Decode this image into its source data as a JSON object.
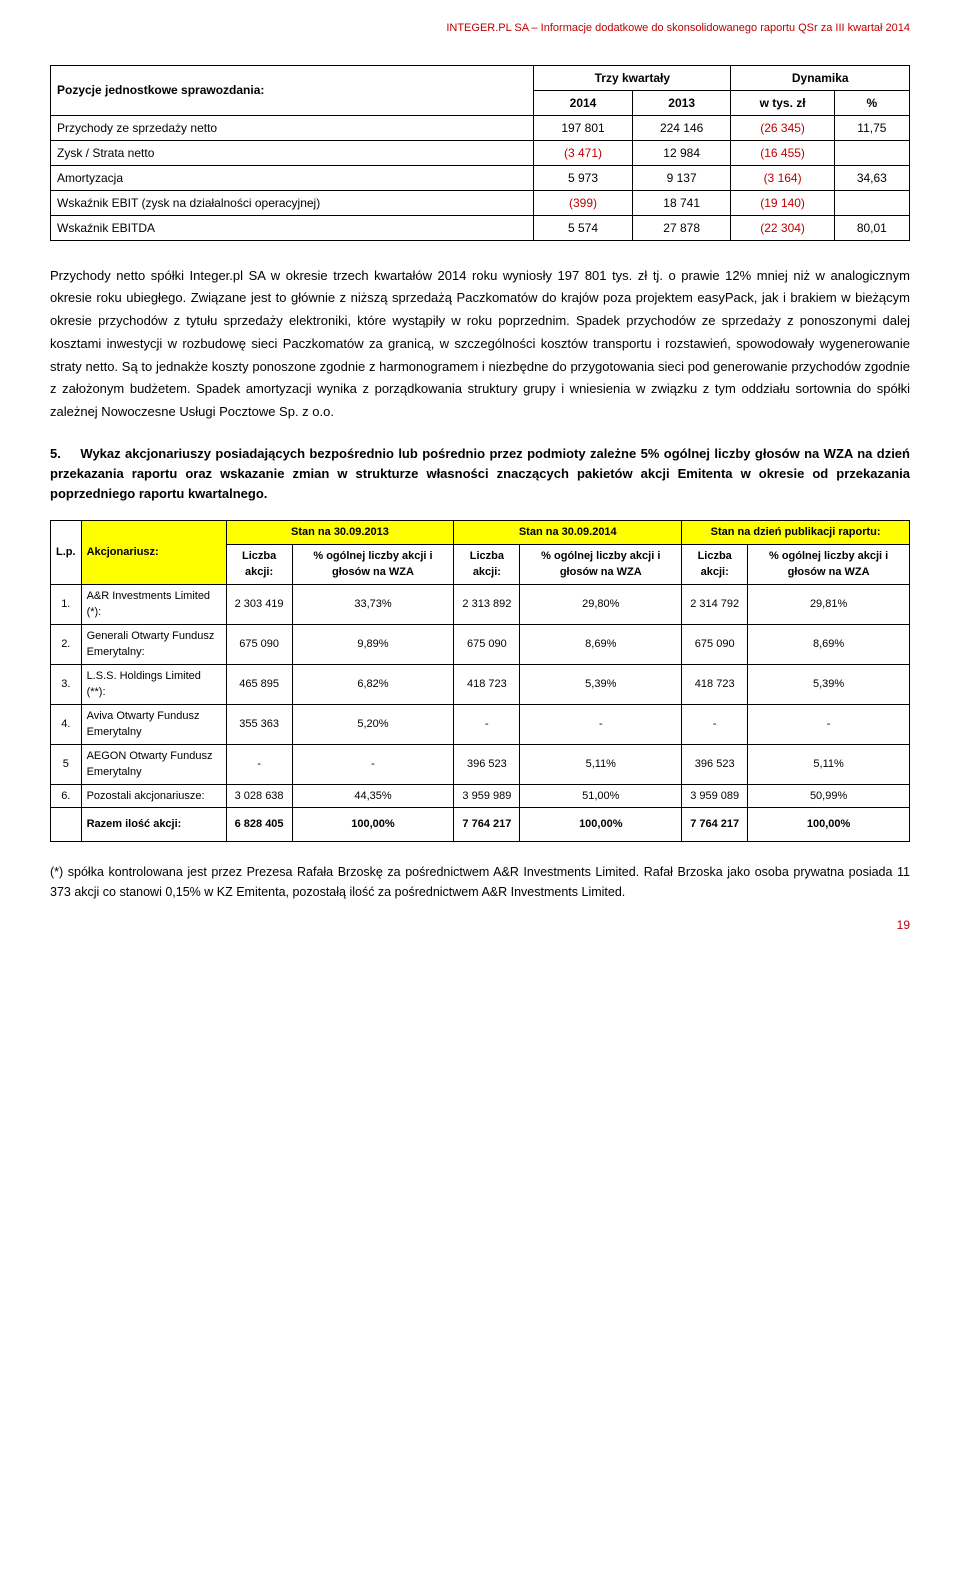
{
  "header": "INTEGER.PL SA – Informacje dodatkowe do skonsolidowanego raportu QSr za III kwartał 2014",
  "t1": {
    "col_headers": {
      "c0": "Pozycje jednostkowe sprawozdania:",
      "c1": "Trzy kwartały",
      "c2": "Dynamika",
      "c1a": "2014",
      "c1b": "2013",
      "c2a": "w tys. zł",
      "c2b": "%"
    },
    "rows": [
      {
        "label": "Przychody ze sprzedaży netto",
        "a": "197 801",
        "b": "224 146",
        "c": "(26 345)",
        "d": "11,75"
      },
      {
        "label": "Zysk / Strata netto",
        "a": "(3 471)",
        "b": "12 984",
        "c": "(16 455)",
        "d": ""
      },
      {
        "label": "Amortyzacja",
        "a": "5 973",
        "b": "9 137",
        "c": "(3 164)",
        "d": "34,63"
      },
      {
        "label": "Wskaźnik EBIT  (zysk na działalności operacyjnej)",
        "a": "(399)",
        "b": "18 741",
        "c": "(19 140)",
        "d": ""
      },
      {
        "label": "Wskaźnik EBITDA",
        "a": "5 574",
        "b": "27 878",
        "c": "(22 304)",
        "d": "80,01"
      }
    ]
  },
  "para1": "Przychody netto spółki Integer.pl SA w okresie trzech kwartałów 2014 roku wyniosły 197 801 tys. zł tj. o prawie 12% mniej niż w analogicznym okresie roku ubiegłego. Związane jest to głównie z niższą sprzedażą Paczkomatów do krajów poza projektem easyPack, jak i brakiem w bieżącym okresie przychodów z tytułu sprzedaży elektroniki, które wystąpiły w roku poprzednim. Spadek przychodów ze sprzedaży z ponoszonymi dalej kosztami inwestycji w rozbudowę sieci Paczkomatów za granicą, w szczególności kosztów transportu i rozstawień, spowodowały wygenerowanie straty netto. Są to jednakże koszty ponoszone zgodnie z harmonogramem i niezbędne do przygotowania sieci pod generowanie przychodów zgodnie z założonym budżetem. Spadek amortyzacji wynika z porządkowania struktury grupy i wniesienia w związku z tym oddziału sortownia do spółki zależnej Nowoczesne Usługi Pocztowe Sp. z o.o.",
  "section5": {
    "num": "5.",
    "title": "Wykaz akcjonariuszy posiadających bezpośrednio lub pośrednio przez podmioty zależne 5% ogólnej liczby głosów na WZA na dzień przekazania raportu oraz wskazanie zmian w strukturze własności znaczących pakietów akcji Emitenta w okresie od przekazania poprzedniego raportu kwartalnego."
  },
  "t2": {
    "heads": {
      "lp": "L.p.",
      "akc": "Akcjonariusz:",
      "p1": "Stan na 30.09.2013",
      "p2": "Stan na 30.09.2014",
      "p3": "Stan na dzień publikacji raportu:",
      "la": "Liczba akcji:",
      "pct": "% ogólnej liczby akcji i głosów na WZA"
    },
    "rows": [
      {
        "lp": "1.",
        "name": "A&R Investments Limited (*):",
        "a1": "2 303 419",
        "a2": "33,73%",
        "b1": "2 313 892",
        "b2": "29,80%",
        "c1": "2 314 792",
        "c2": "29,81%"
      },
      {
        "lp": "2.",
        "name": "Generali Otwarty Fundusz Emerytalny:",
        "a1": "675 090",
        "a2": "9,89%",
        "b1": "675 090",
        "b2": "8,69%",
        "c1": "675 090",
        "c2": "8,69%"
      },
      {
        "lp": "3.",
        "name": "L.S.S. Holdings Limited (**):",
        "a1": "465 895",
        "a2": "6,82%",
        "b1": "418 723",
        "b2": "5,39%",
        "c1": "418 723",
        "c2": "5,39%"
      },
      {
        "lp": "4.",
        "name": "Aviva Otwarty Fundusz Emerytalny",
        "a1": "355 363",
        "a2": "5,20%",
        "b1": "-",
        "b2": "-",
        "c1": "-",
        "c2": "-"
      },
      {
        "lp": "5",
        "name": "AEGON Otwarty Fundusz Emerytalny",
        "a1": "-",
        "a2": "-",
        "b1": "396 523",
        "b2": "5,11%",
        "c1": "396 523",
        "c2": "5,11%"
      },
      {
        "lp": "6.",
        "name": "Pozostali akcjonariusze:",
        "a1": "3 028 638",
        "a2": "44,35%",
        "b1": "3 959 989",
        "b2": "51,00%",
        "c1": "3 959 089",
        "c2": "50,99%"
      }
    ],
    "sum": {
      "label": "Razem ilość akcji:",
      "a1": "6 828 405",
      "a2": "100,00%",
      "b1": "7 764 217",
      "b2": "100,00%",
      "c1": "7 764 217",
      "c2": "100,00%"
    }
  },
  "footnote": "(*) spółka kontrolowana jest przez Prezesa Rafała Brzoskę za pośrednictwem A&R Investments Limited. Rafał Brzoska jako osoba prywatna posiada 11 373 akcji co stanowi 0,15% w KZ Emitenta, pozostałą ilość za pośrednictwem A&R Investments Limited.",
  "page_num": "19"
}
